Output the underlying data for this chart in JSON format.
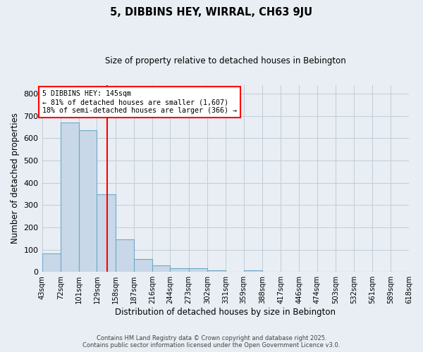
{
  "title": "5, DIBBINS HEY, WIRRAL, CH63 9JU",
  "subtitle": "Size of property relative to detached houses in Bebington",
  "xlabel": "Distribution of detached houses by size in Bebington",
  "ylabel": "Number of detached properties",
  "bin_labels": [
    "43sqm",
    "72sqm",
    "101sqm",
    "129sqm",
    "158sqm",
    "187sqm",
    "216sqm",
    "244sqm",
    "273sqm",
    "302sqm",
    "331sqm",
    "359sqm",
    "388sqm",
    "417sqm",
    "446sqm",
    "474sqm",
    "503sqm",
    "532sqm",
    "561sqm",
    "589sqm",
    "618sqm"
  ],
  "bin_edges": [
    43,
    72,
    101,
    129,
    158,
    187,
    216,
    244,
    273,
    302,
    331,
    359,
    388,
    417,
    446,
    474,
    503,
    532,
    561,
    589,
    618
  ],
  "bar_heights": [
    82,
    670,
    635,
    350,
    147,
    58,
    28,
    17,
    15,
    7,
    0,
    8,
    0,
    0,
    0,
    0,
    0,
    0,
    0,
    0
  ],
  "bar_color": "#c8d8e8",
  "bar_edge_color": "#6fa8c8",
  "red_line_x": 145,
  "annotation_title": "5 DIBBINS HEY: 145sqm",
  "annotation_line1": "← 81% of detached houses are smaller (1,607)",
  "annotation_line2": "18% of semi-detached houses are larger (366) →",
  "ylim": [
    0,
    840
  ],
  "yticks": [
    0,
    100,
    200,
    300,
    400,
    500,
    600,
    700,
    800
  ],
  "footer1": "Contains HM Land Registry data © Crown copyright and database right 2025.",
  "footer2": "Contains public sector information licensed under the Open Government Licence v3.0.",
  "bg_color": "#e8eef4",
  "grid_color": "#c0ccd8"
}
